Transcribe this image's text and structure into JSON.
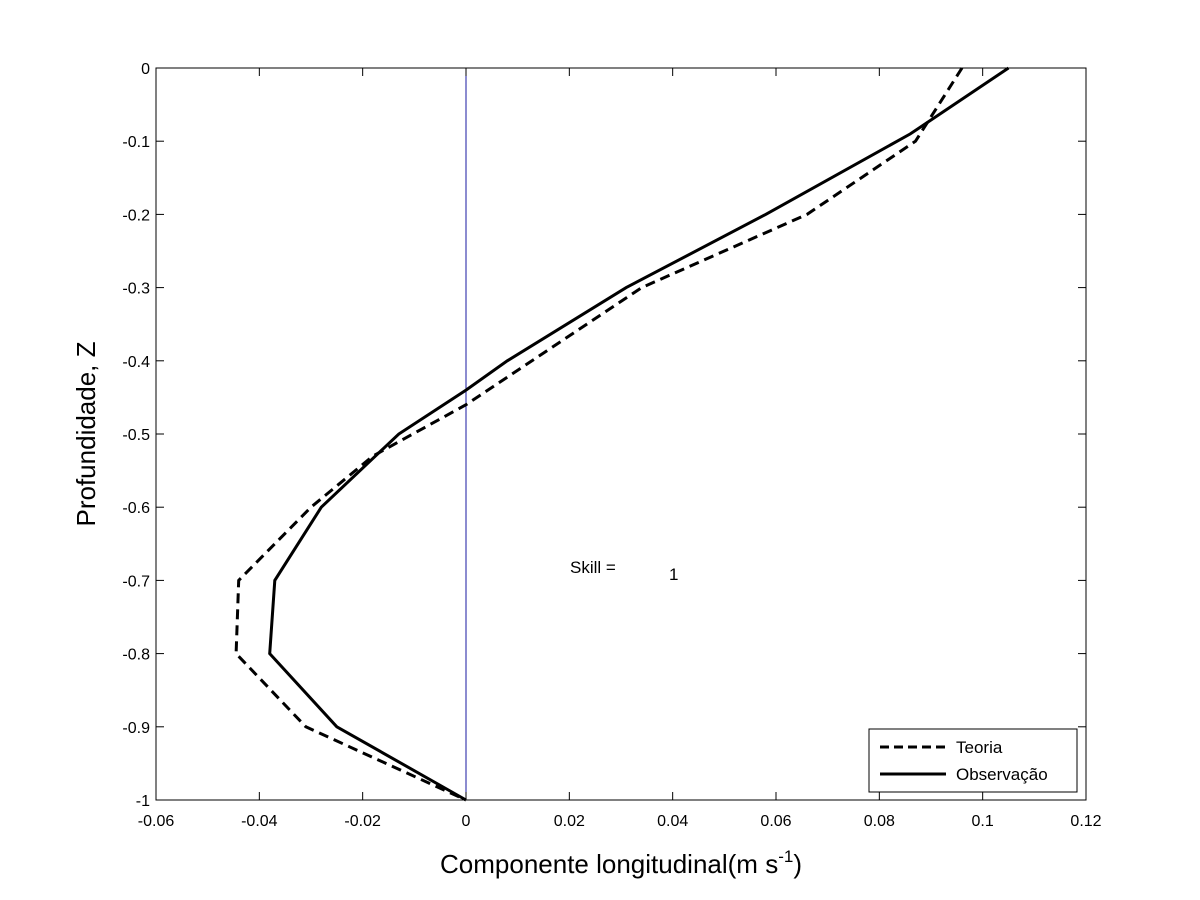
{
  "chart_data": {
    "type": "line",
    "title": "",
    "xlabel": "Componente longitudinal(m s",
    "xlabel_superscript": "-1",
    "xlabel_suffix": ")",
    "ylabel": "Profundidade, Z",
    "xlim": [
      -0.06,
      0.12
    ],
    "ylim": [
      -1,
      0
    ],
    "xticks": [
      -0.06,
      -0.04,
      -0.02,
      0,
      0.02,
      0.04,
      0.06,
      0.08,
      0.1,
      0.12
    ],
    "xtick_labels": [
      "-0.06",
      "-0.04",
      "-0.02",
      "0",
      "0.02",
      "0.04",
      "0.06",
      "0.08",
      "0.1",
      "0.12"
    ],
    "yticks": [
      0,
      -0.1,
      -0.2,
      -0.3,
      -0.4,
      -0.5,
      -0.6,
      -0.7,
      -0.8,
      -0.9,
      -1
    ],
    "ytick_labels": [
      "0",
      "-0.1",
      "-0.2",
      "-0.3",
      "-0.4",
      "-0.5",
      "-0.6",
      "-0.7",
      "-0.8",
      "-0.9",
      "-1"
    ],
    "grid": false,
    "legend_position": "bottom-right",
    "reference_line": {
      "x": 0,
      "color": "#1a1aa0"
    },
    "annotation": {
      "label": "Skill =",
      "value": "1"
    },
    "series": [
      {
        "name": "Teoria",
        "style": "dashed",
        "color": "#000000",
        "x": [
          0.096,
          0.087,
          0.066,
          0.034,
          0.0,
          -0.018,
          -0.03,
          -0.044,
          -0.0445,
          -0.031,
          0.0
        ],
        "z": [
          0,
          -0.1,
          -0.2,
          -0.3,
          -0.46,
          -0.53,
          -0.6,
          -0.7,
          -0.8,
          -0.9,
          -1
        ]
      },
      {
        "name": "Observação",
        "style": "solid",
        "color": "#000000",
        "x": [
          0.105,
          0.086,
          0.058,
          0.031,
          0.008,
          0.0,
          -0.013,
          -0.028,
          -0.037,
          -0.038,
          -0.025,
          0.0
        ],
        "z": [
          0,
          -0.09,
          -0.2,
          -0.3,
          -0.4,
          -0.44,
          -0.5,
          -0.6,
          -0.7,
          -0.8,
          -0.9,
          -1
        ]
      }
    ]
  }
}
